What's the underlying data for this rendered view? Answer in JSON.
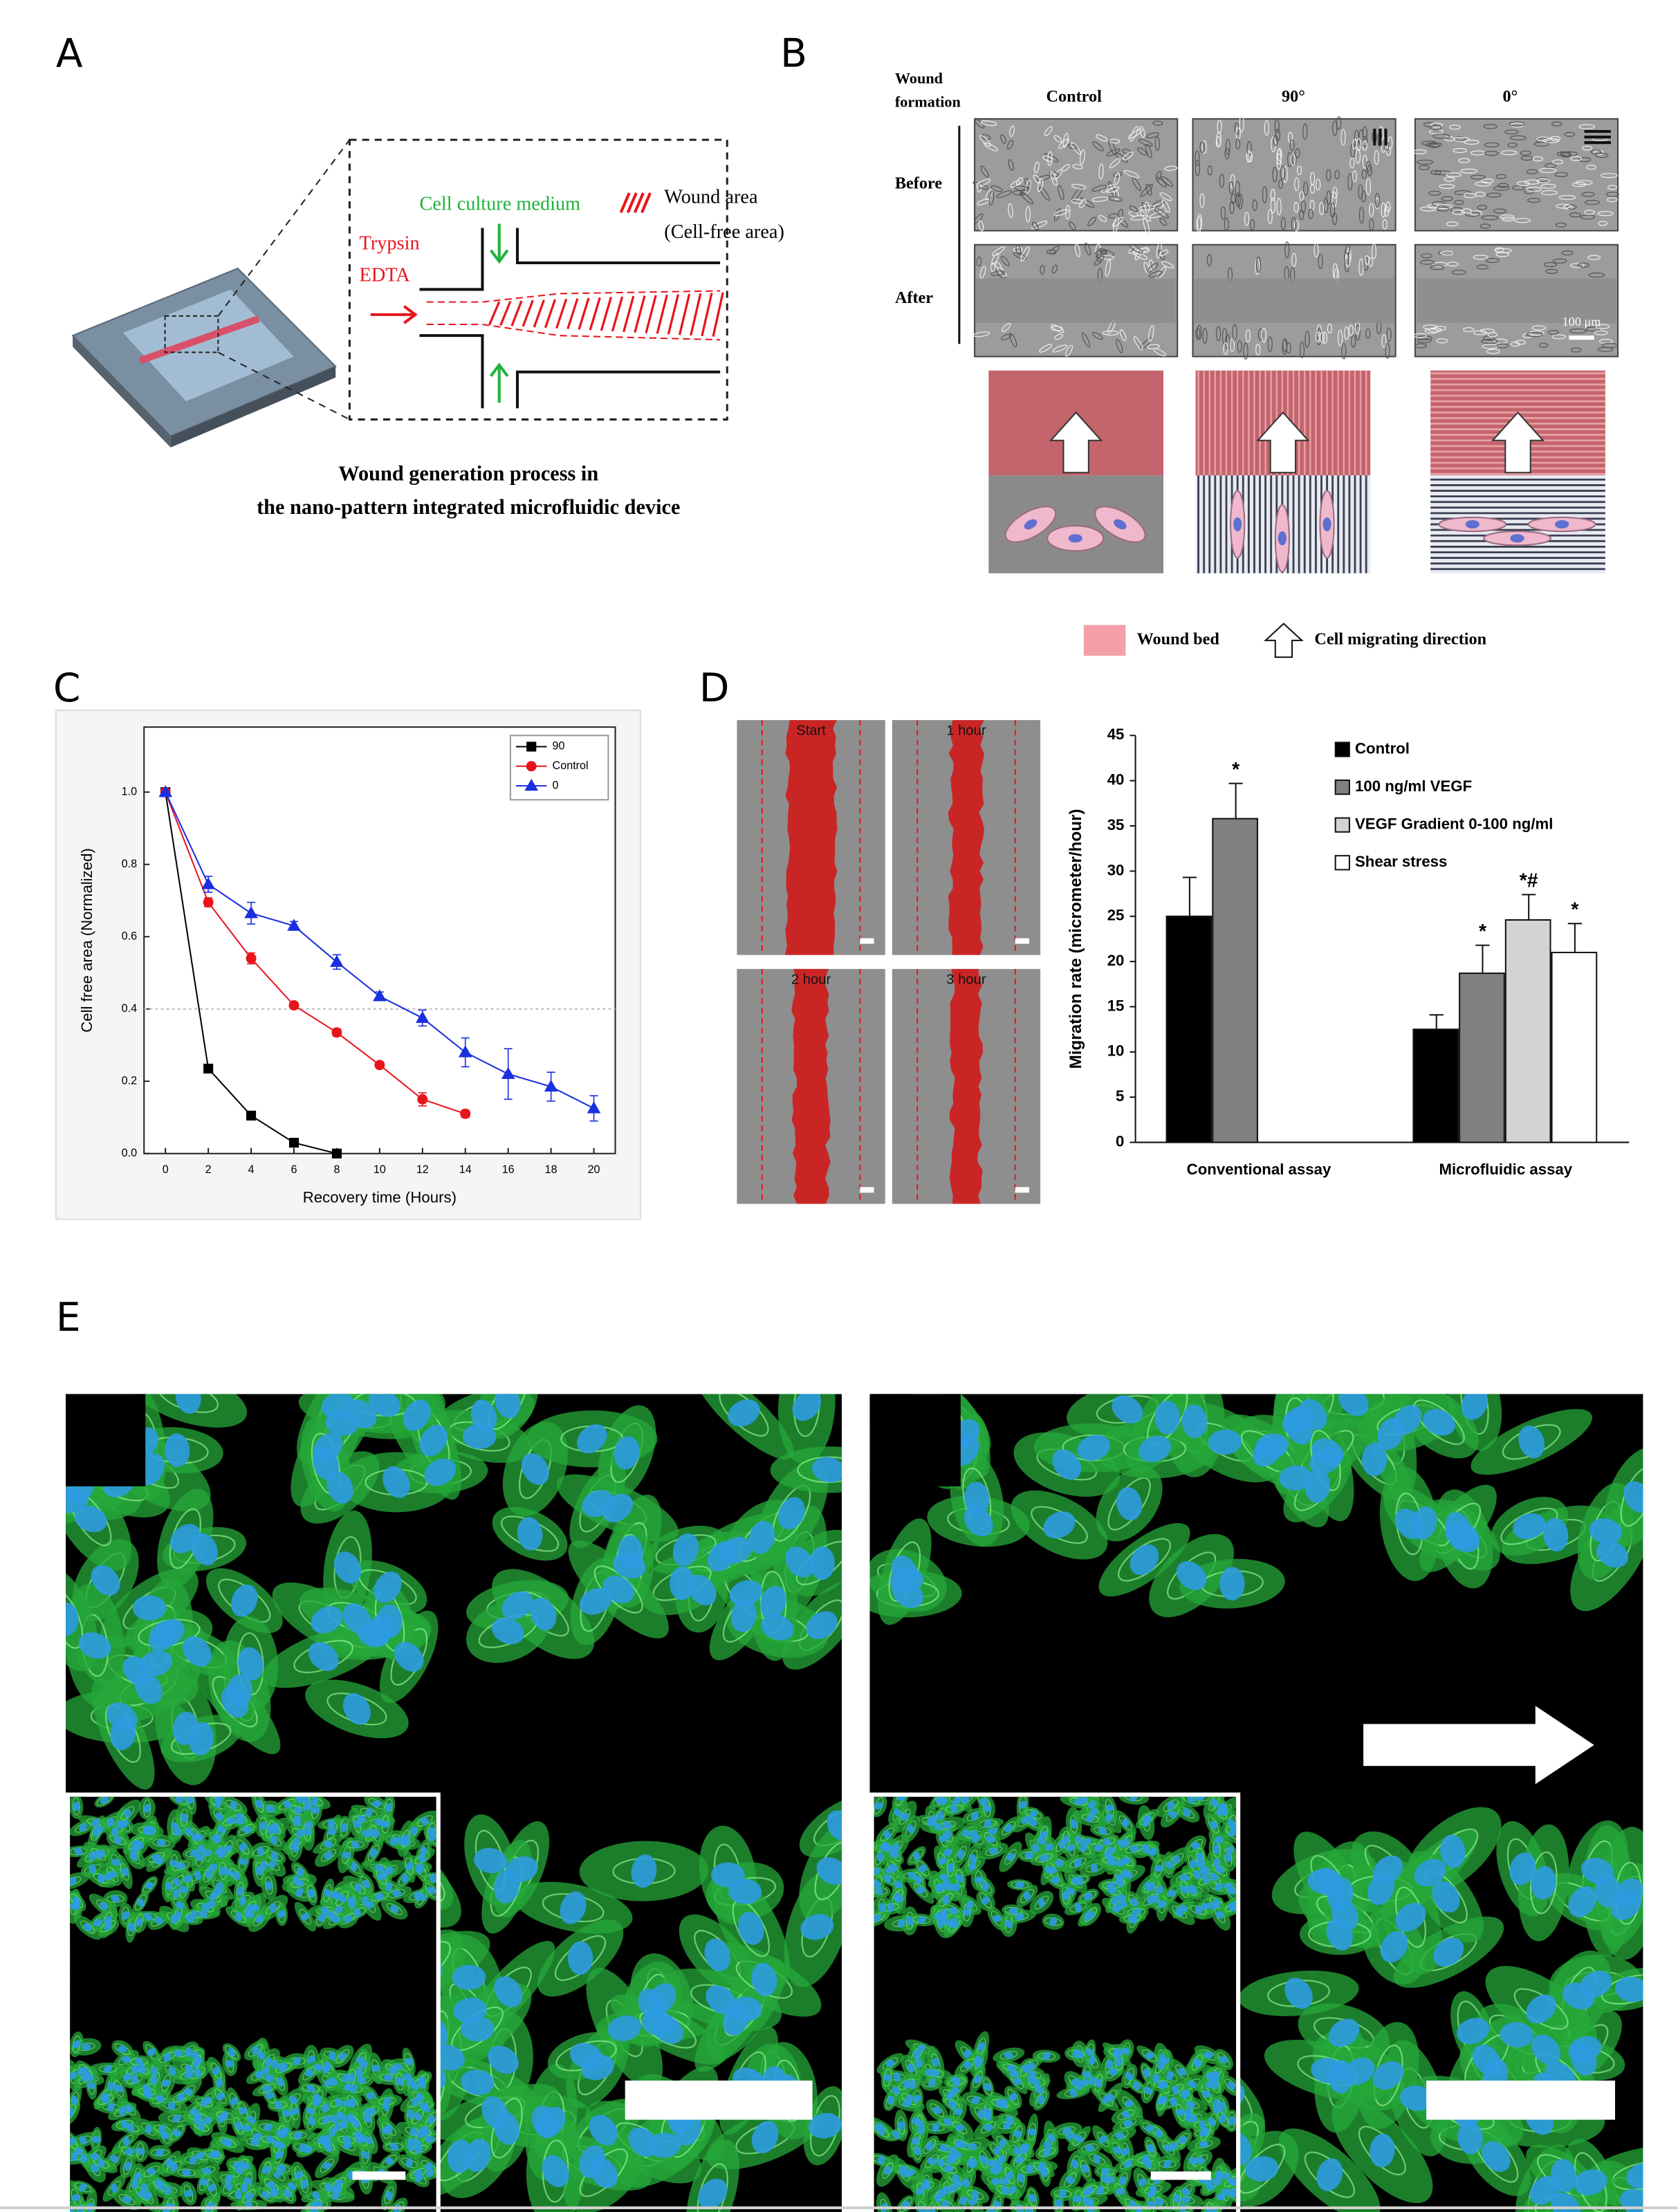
{
  "panels": {
    "a": "A",
    "b": "B",
    "c": "C",
    "d": "D",
    "e": "E"
  },
  "panel_a": {
    "medium": "Cell culture medium",
    "wound_area": [
      "Wound area",
      "(Cell-free area)"
    ],
    "trypsin": [
      "Trypsin",
      "EDTA"
    ],
    "caption": [
      "Wound generation process in",
      "the nano-pattern integrated microfluidic device"
    ]
  },
  "panel_b": {
    "row_header": [
      "Wound",
      "formation"
    ],
    "columns": [
      "Control",
      "90°",
      "0°"
    ],
    "rows": [
      "Before",
      "After"
    ],
    "scale_bar": "100 μm",
    "legend": [
      "Wound bed",
      "Cell migrating direction"
    ]
  },
  "panel_d_images": {
    "labels": [
      "Start",
      "1 hour",
      "2 hour",
      "3 hour"
    ]
  },
  "chart_data": [
    {
      "type": "line",
      "x_label": "Recovery time (Hours)",
      "y_label": "Cell free area (Normalized)",
      "xlim": [
        -1,
        21
      ],
      "xticks": [
        0,
        2,
        4,
        6,
        8,
        10,
        12,
        14,
        16,
        18,
        20
      ],
      "ylim": [
        0,
        1.18
      ],
      "yticks": [
        {
          "value": 0,
          "label": "0.0"
        },
        0.2,
        0.4,
        0.6,
        0.8,
        {
          "value": 1,
          "label": "1.0"
        }
      ],
      "reference_line": 0.4,
      "legend": "upper right",
      "series": [
        {
          "name": "90",
          "color": "#000000",
          "marker": "square",
          "x": [
            0,
            2,
            4,
            6,
            8
          ],
          "values": [
            1,
            0.235,
            0.105,
            0.03,
            0
          ]
        },
        {
          "name": "Control",
          "color": "#e8141c",
          "marker": "circle",
          "x": [
            0,
            2,
            4,
            6,
            8,
            10,
            12,
            14
          ],
          "values": [
            1,
            0.695,
            0.54,
            0.41,
            0.335,
            0.245,
            0.15,
            0.11
          ],
          "errors": [
            0,
            0.012,
            0.015,
            0.008,
            0.01,
            0.008,
            0.018,
            0.01
          ]
        },
        {
          "name": "0",
          "color": "#1a2fe0",
          "marker": "triangle",
          "x": [
            0,
            2,
            4,
            6,
            8,
            10,
            12,
            14,
            16,
            18,
            20
          ],
          "values": [
            1,
            0.745,
            0.665,
            0.63,
            0.53,
            0.435,
            0.375,
            0.28,
            0.22,
            0.185,
            0.125
          ],
          "errors": [
            0,
            0.022,
            0.03,
            0.012,
            0.02,
            0.012,
            0.022,
            0.04,
            0.07,
            0.04,
            0.035
          ]
        }
      ]
    },
    {
      "type": "bar",
      "y_label": "Migration rate (micrometer/hour)",
      "categories": [
        "Conventional assay",
        "Microfluidic assay"
      ],
      "ylim": [
        0,
        45
      ],
      "yticks": [
        0,
        5,
        10,
        15,
        20,
        25,
        30,
        35,
        40,
        45
      ],
      "legend": "upper right",
      "series": [
        {
          "name": "Control",
          "color": "#000000",
          "values": [
            25,
            12.5
          ],
          "errors": [
            4.3,
            1.6
          ]
        },
        {
          "name": "100 ng/ml VEGF",
          "color": "#808080",
          "values": [
            35.8,
            18.7
          ],
          "errors": [
            3.9,
            3.1
          ],
          "annotations": [
            "*",
            "*"
          ]
        },
        {
          "name": "VEGF Gradient 0-100 ng/ml",
          "color": "#d3d3d3",
          "values": [
            null,
            24.6
          ],
          "errors": [
            null,
            2.8
          ],
          "annotations": [
            null,
            "*#"
          ]
        },
        {
          "name": "Shear stress",
          "color": "#ffffff",
          "values": [
            null,
            21
          ],
          "errors": [
            null,
            3.2
          ],
          "annotations": [
            null,
            "*"
          ]
        }
      ]
    }
  ]
}
